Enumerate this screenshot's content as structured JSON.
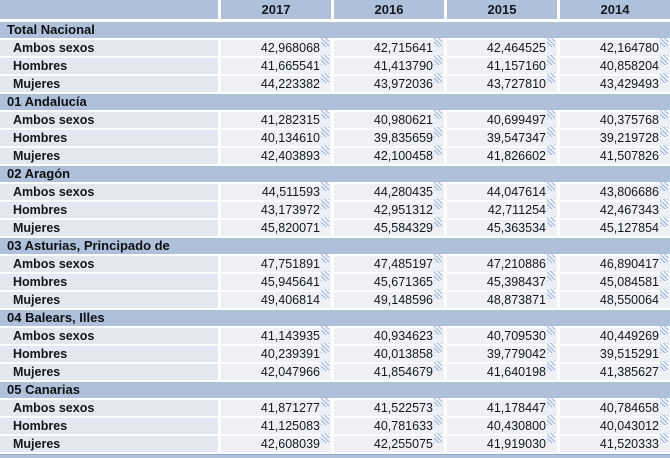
{
  "table": {
    "row_label_header": "",
    "columns": [
      "2017",
      "2016",
      "2015",
      "2014"
    ],
    "value_note_icon": "diagonal-hatch-note",
    "groups": [
      {
        "label": "Total Nacional",
        "rows": [
          {
            "label": "Ambos sexos",
            "values": [
              "42,968068",
              "42,715641",
              "42,464525",
              "42,164780"
            ]
          },
          {
            "label": "Hombres",
            "values": [
              "41,665541",
              "41,413790",
              "41,157160",
              "40,858204"
            ]
          },
          {
            "label": "Mujeres",
            "values": [
              "44,223382",
              "43,972036",
              "43,727810",
              "43,429493"
            ]
          }
        ]
      },
      {
        "label": "01 Andalucía",
        "rows": [
          {
            "label": "Ambos sexos",
            "values": [
              "41,282315",
              "40,980621",
              "40,699497",
              "40,375768"
            ]
          },
          {
            "label": "Hombres",
            "values": [
              "40,134610",
              "39,835659",
              "39,547347",
              "39,219728"
            ]
          },
          {
            "label": "Mujeres",
            "values": [
              "42,403893",
              "42,100458",
              "41,826602",
              "41,507826"
            ]
          }
        ]
      },
      {
        "label": "02 Aragón",
        "rows": [
          {
            "label": "Ambos sexos",
            "values": [
              "44,511593",
              "44,280435",
              "44,047614",
              "43,806686"
            ]
          },
          {
            "label": "Hombres",
            "values": [
              "43,173972",
              "42,951312",
              "42,711254",
              "42,467343"
            ]
          },
          {
            "label": "Mujeres",
            "values": [
              "45,820071",
              "45,584329",
              "45,363534",
              "45,127854"
            ]
          }
        ]
      },
      {
        "label": "03 Asturias, Principado de",
        "rows": [
          {
            "label": "Ambos sexos",
            "values": [
              "47,751891",
              "47,485197",
              "47,210886",
              "46,890417"
            ]
          },
          {
            "label": "Hombres",
            "values": [
              "45,945641",
              "45,671365",
              "45,398437",
              "45,084581"
            ]
          },
          {
            "label": "Mujeres",
            "values": [
              "49,406814",
              "49,148596",
              "48,873871",
              "48,550064"
            ]
          }
        ]
      },
      {
        "label": "04 Balears, Illes",
        "rows": [
          {
            "label": "Ambos sexos",
            "values": [
              "41,143935",
              "40,934623",
              "40,709530",
              "40,449269"
            ]
          },
          {
            "label": "Hombres",
            "values": [
              "40,239391",
              "40,013858",
              "39,779042",
              "39,515291"
            ]
          },
          {
            "label": "Mujeres",
            "values": [
              "42,047966",
              "41,854679",
              "41,640198",
              "41,385627"
            ]
          }
        ]
      },
      {
        "label": "05 Canarias",
        "rows": [
          {
            "label": "Ambos sexos",
            "values": [
              "41,871277",
              "41,522573",
              "41,178447",
              "40,784658"
            ]
          },
          {
            "label": "Hombres",
            "values": [
              "41,125083",
              "40,781633",
              "40,430800",
              "40,043012"
            ]
          },
          {
            "label": "Mujeres",
            "values": [
              "42,608039",
              "42,255075",
              "41,919030",
              "41,520333"
            ]
          }
        ]
      }
    ]
  },
  "colors": {
    "band_blue": "#afc0db",
    "row_label_bg": "#e4e6f0",
    "value_cell_bg": "#eef0f6",
    "note_icon_blue": "#9ab4e0",
    "text": "#14171c"
  }
}
